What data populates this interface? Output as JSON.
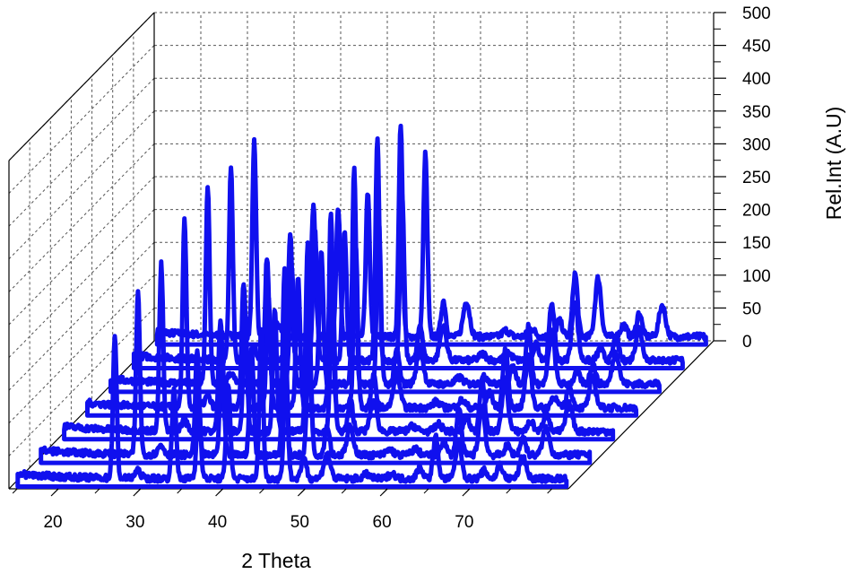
{
  "chart_data": {
    "type": "line",
    "subtype": "3d-waterfall",
    "title": "",
    "xlabel": "2 Theta",
    "zlabel": "Rel.Int (A.U)",
    "x_ticks": [
      20,
      30,
      40,
      50,
      60,
      70
    ],
    "z_ticks": [
      0,
      50,
      100,
      150,
      200,
      250,
      300,
      350,
      400,
      450,
      500
    ],
    "xlim": [
      14,
      82
    ],
    "zlim": [
      0,
      500
    ],
    "series_count": 7,
    "series_color": "#1010ee",
    "grid": true,
    "base_intensity": 12,
    "peaks": [
      {
        "two_theta": 26.6,
        "intensity": 310,
        "width": 0.32
      },
      {
        "two_theta": 29.4,
        "intensity": 18,
        "width": 0.5
      },
      {
        "two_theta": 33.8,
        "intensity": 205,
        "width": 0.34
      },
      {
        "two_theta": 36.8,
        "intensity": 195,
        "width": 0.34
      },
      {
        "two_theta": 40.4,
        "intensity": 215,
        "width": 0.34
      },
      {
        "two_theta": 44.4,
        "intensity": 340,
        "width": 0.32
      },
      {
        "two_theta": 47.4,
        "intensity": 270,
        "width": 0.34
      },
      {
        "two_theta": 49.6,
        "intensity": 55,
        "width": 0.4
      },
      {
        "two_theta": 52.4,
        "intensity": 55,
        "width": 0.55
      },
      {
        "two_theta": 57.2,
        "intensity": 10,
        "width": 0.6
      },
      {
        "two_theta": 60.3,
        "intensity": 12,
        "width": 0.6
      },
      {
        "two_theta": 63.7,
        "intensity": 25,
        "width": 0.5
      },
      {
        "two_theta": 65.6,
        "intensity": 95,
        "width": 0.42
      },
      {
        "two_theta": 68.4,
        "intensity": 90,
        "width": 0.5
      },
      {
        "two_theta": 71.5,
        "intensity": 18,
        "width": 0.5
      },
      {
        "two_theta": 73.4,
        "intensity": 35,
        "width": 0.45
      },
      {
        "two_theta": 76.2,
        "intensity": 50,
        "width": 0.55
      }
    ]
  }
}
